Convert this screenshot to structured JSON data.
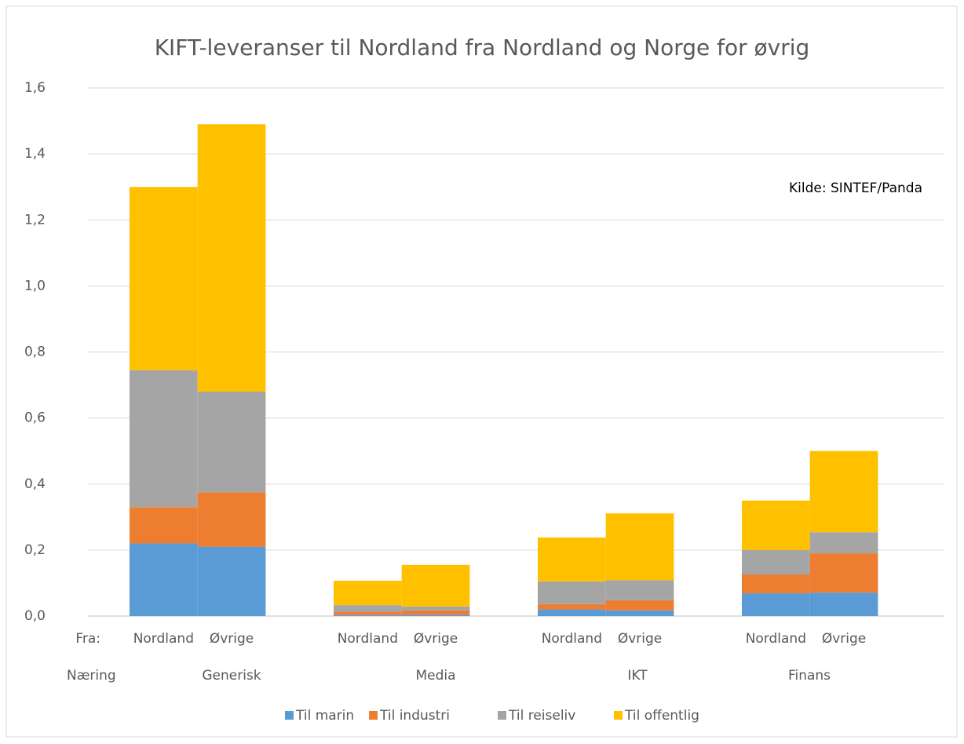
{
  "chart_data": {
    "type": "stacked_bar",
    "title": "KIFT-leveranser til Nordland fra Nordland og Norge for øvrig",
    "annotation": "Kilde: SINTEF/Panda",
    "category_axis_labels": [
      "Fra:",
      "Næring"
    ],
    "categories": [
      "Nordland",
      "Øvrige",
      "Nordland",
      "Øvrige",
      "Nordland",
      "Øvrige",
      "Nordland",
      "Øvrige"
    ],
    "groups": [
      "Generisk",
      "Media",
      "IKT",
      "Finans"
    ],
    "series": [
      {
        "name": "Til marin",
        "color": "#5b9bd5",
        "values": [
          0.22,
          0.21,
          0.003,
          0.004,
          0.02,
          0.017,
          0.069,
          0.071
        ]
      },
      {
        "name": "Til industri",
        "color": "#ed7d31",
        "values": [
          0.11,
          0.165,
          0.009,
          0.013,
          0.016,
          0.031,
          0.057,
          0.119
        ]
      },
      {
        "name": "Til reiseliv",
        "color": "#a5a5a5",
        "values": [
          0.415,
          0.305,
          0.021,
          0.012,
          0.069,
          0.061,
          0.074,
          0.064
        ]
      },
      {
        "name": "Til offentlig",
        "color": "#ffc000",
        "values": [
          0.555,
          0.81,
          0.074,
          0.126,
          0.133,
          0.202,
          0.15,
          0.246
        ]
      }
    ],
    "ylim": [
      0,
      1.6
    ],
    "yticks": [
      {
        "value": 0,
        "label": "0,0"
      },
      {
        "value": 0.2,
        "label": "0,2"
      },
      {
        "value": 0.4,
        "label": "0,4"
      },
      {
        "value": 0.6,
        "label": "0,6"
      },
      {
        "value": 0.8,
        "label": "0,8"
      },
      {
        "value": 1.0,
        "label": "1,0"
      },
      {
        "value": 1.2,
        "label": "1,2"
      },
      {
        "value": 1.4,
        "label": "1,4"
      },
      {
        "value": 1.6,
        "label": "1,6"
      }
    ],
    "grid": true
  }
}
